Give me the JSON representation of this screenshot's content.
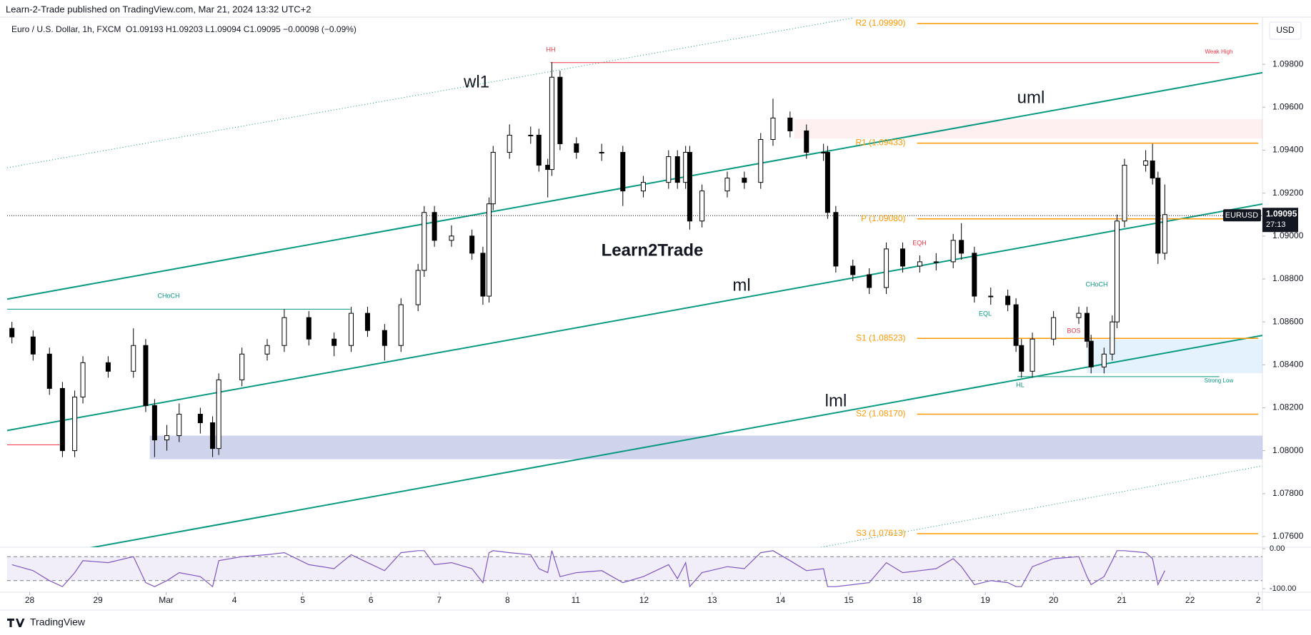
{
  "header": {
    "publisher": "Learn-2-Trade published on TradingView.com, Mar 21, 2024 13:32 UTC+2",
    "footer": "TradingView",
    "watermark": "Learn2Trade"
  },
  "chart_data": {
    "type": "candlestick",
    "symbol_line": "Euro / U.S. Dollar, 1h, FXCM",
    "ohlc_line": "O1.09193 H1.09203 L1.09094 C1.09095 −0.00098 (−0.09%)",
    "currency": "USD",
    "xlim": [
      -0.33,
      18.06
    ],
    "xticks": [
      {
        "value": 0,
        "label": "28"
      },
      {
        "value": 1,
        "label": "29"
      },
      {
        "value": 2,
        "label": "Mar"
      },
      {
        "value": 3,
        "label": "4"
      },
      {
        "value": 4,
        "label": "5"
      },
      {
        "value": 5,
        "label": "6"
      },
      {
        "value": 6,
        "label": "7"
      },
      {
        "value": 7,
        "label": "8"
      },
      {
        "value": 8,
        "label": "11"
      },
      {
        "value": 9,
        "label": "12"
      },
      {
        "value": 10,
        "label": "13"
      },
      {
        "value": 11,
        "label": "14"
      },
      {
        "value": 12,
        "label": "15"
      },
      {
        "value": 13,
        "label": "18"
      },
      {
        "value": 14,
        "label": "19"
      },
      {
        "value": 15,
        "label": "20"
      },
      {
        "value": 16,
        "label": "21"
      },
      {
        "value": 17,
        "label": "22"
      },
      {
        "value": 18,
        "label": "2"
      }
    ],
    "ylim": [
      1.0755,
      1.1002
    ],
    "yticks": [
      {
        "value": 1.098,
        "label": "1.09800"
      },
      {
        "value": 1.096,
        "label": "1.09600"
      },
      {
        "value": 1.094,
        "label": "1.09400"
      },
      {
        "value": 1.092,
        "label": "1.09200"
      },
      {
        "value": 1.09,
        "label": "1.09000"
      },
      {
        "value": 1.088,
        "label": "1.08800"
      },
      {
        "value": 1.086,
        "label": "1.08600"
      },
      {
        "value": 1.084,
        "label": "1.08400"
      },
      {
        "value": 1.082,
        "label": "1.08200"
      },
      {
        "value": 1.08,
        "label": "1.08000"
      },
      {
        "value": 1.078,
        "label": "1.07800"
      },
      {
        "value": 1.076,
        "label": "1.07600"
      }
    ],
    "candles": {
      "up_color": "#ffffff",
      "down_color": "#000000",
      "x": [
        -0.26,
        0.05,
        0.29,
        0.48,
        0.66,
        0.78,
        1.15,
        1.52,
        1.7,
        1.83,
        2.01,
        2.19,
        2.5,
        2.68,
        2.77,
        3.11,
        3.48,
        3.73,
        4.09,
        4.46,
        4.71,
        4.95,
        5.2,
        5.44,
        5.69,
        5.78,
        5.93,
        6.18,
        6.48,
        6.64,
        6.73,
        6.79,
        7.03,
        7.34,
        7.46,
        7.59,
        7.65,
        7.77,
        8.01,
        8.38,
        8.69,
        8.99,
        9.36,
        9.49,
        9.61,
        9.67,
        9.85,
        10.22,
        10.47,
        10.71,
        10.89,
        11.14,
        11.38,
        11.63,
        11.69,
        11.81,
        12.06,
        12.3,
        12.55,
        12.79,
        13.04,
        13.28,
        13.53,
        13.65,
        13.84,
        14.08,
        14.33,
        14.45,
        14.53,
        14.69,
        15.0,
        15.37,
        15.49,
        15.55,
        15.74,
        15.86,
        15.93,
        16.04,
        16.35,
        16.45,
        16.53,
        16.63
      ],
      "open": [
        1.0857,
        1.0853,
        1.0845,
        1.0829,
        1.08,
        1.0825,
        1.0841,
        1.0837,
        1.0849,
        1.0821,
        1.0805,
        1.0807,
        1.0817,
        1.0813,
        1.0801,
        1.0833,
        1.0845,
        1.0849,
        1.0862,
        1.0852,
        1.0849,
        1.0864,
        1.0856,
        1.0849,
        1.0868,
        1.0884,
        1.0911,
        1.0898,
        1.09,
        1.0892,
        1.0872,
        1.0915,
        1.0939,
        1.0947,
        1.0947,
        1.0933,
        1.0931,
        1.0974,
        1.0943,
        1.0939,
        1.0939,
        1.0921,
        1.0925,
        1.0937,
        1.0925,
        1.0939,
        1.0907,
        1.0921,
        1.0927,
        1.0925,
        1.0945,
        1.0955,
        1.0949,
        1.0939,
        1.0939,
        1.0911,
        1.0886,
        1.0882,
        1.0876,
        1.0894,
        1.0886,
        1.0888,
        1.0888,
        1.0898,
        1.0892,
        1.0872,
        1.0872,
        1.0868,
        1.0849,
        1.0837,
        1.0852,
        1.0862,
        1.0864,
        1.0851,
        1.0839,
        1.0845,
        1.086,
        1.0907,
        1.0933,
        1.0935,
        1.0927,
        1.0892
      ],
      "high": [
        1.086,
        1.0856,
        1.0848,
        1.0832,
        1.0828,
        1.0844,
        1.0844,
        1.0857,
        1.0852,
        1.0824,
        1.0812,
        1.0822,
        1.082,
        1.0816,
        1.0836,
        1.0848,
        1.0852,
        1.0866,
        1.0865,
        1.0855,
        1.0867,
        1.0867,
        1.0859,
        1.0871,
        1.0887,
        1.0914,
        1.0914,
        1.0905,
        1.0903,
        1.0895,
        1.0918,
        1.0942,
        1.0952,
        1.0951,
        1.095,
        1.0936,
        1.0981,
        1.0977,
        1.0946,
        1.0943,
        1.0942,
        1.0928,
        1.094,
        1.094,
        1.0942,
        1.0942,
        1.0924,
        1.093,
        1.093,
        1.0948,
        1.0964,
        1.0958,
        1.0952,
        1.0943,
        1.0942,
        1.0914,
        1.0889,
        1.0885,
        1.0897,
        1.0897,
        1.0891,
        1.0892,
        1.0901,
        1.0906,
        1.0895,
        1.0876,
        1.0875,
        1.0871,
        1.0852,
        1.0855,
        1.0865,
        1.0867,
        1.0867,
        1.0854,
        1.0848,
        1.0863,
        1.091,
        1.0936,
        1.094,
        1.0943,
        1.093,
        1.0924
      ],
      "low": [
        1.085,
        1.0842,
        1.0826,
        1.0797,
        1.0797,
        1.0822,
        1.0834,
        1.0834,
        1.0818,
        1.0797,
        1.08,
        1.0804,
        1.0808,
        1.0797,
        1.0798,
        1.083,
        1.0842,
        1.0846,
        1.0849,
        1.0844,
        1.0846,
        1.0853,
        1.0842,
        1.0846,
        1.0865,
        1.0881,
        1.0895,
        1.0895,
        1.0889,
        1.0868,
        1.0869,
        1.0912,
        1.0936,
        1.0943,
        1.093,
        1.0918,
        1.0928,
        1.094,
        1.0936,
        1.0935,
        1.0914,
        1.0918,
        1.0922,
        1.0922,
        1.0922,
        1.0903,
        1.0904,
        1.0918,
        1.0922,
        1.0922,
        1.0942,
        1.0946,
        1.0936,
        1.0935,
        1.0908,
        1.0883,
        1.0879,
        1.0873,
        1.0873,
        1.0883,
        1.0883,
        1.0884,
        1.0885,
        1.0889,
        1.0869,
        1.0868,
        1.0865,
        1.0846,
        1.0834,
        1.0834,
        1.0849,
        1.0859,
        1.0848,
        1.0836,
        1.0836,
        1.0842,
        1.0857,
        1.0904,
        1.093,
        1.0924,
        1.0887,
        1.0889
      ],
      "close": [
        1.0853,
        1.0845,
        1.0829,
        1.08,
        1.0825,
        1.0841,
        1.0837,
        1.0849,
        1.0821,
        1.0805,
        1.0807,
        1.0817,
        1.0813,
        1.0801,
        1.0833,
        1.0845,
        1.0849,
        1.0862,
        1.0852,
        1.0849,
        1.0864,
        1.0856,
        1.0849,
        1.0868,
        1.0884,
        1.0911,
        1.0898,
        1.09,
        1.0892,
        1.0872,
        1.0915,
        1.0939,
        1.0947,
        1.0947,
        1.0933,
        1.0931,
        1.0974,
        1.0943,
        1.0939,
        1.0939,
        1.0921,
        1.0925,
        1.0937,
        1.0925,
        1.0939,
        1.0907,
        1.0921,
        1.0927,
        1.0925,
        1.0945,
        1.0955,
        1.0949,
        1.0939,
        1.0939,
        1.0911,
        1.0886,
        1.0882,
        1.0876,
        1.0894,
        1.0886,
        1.0888,
        1.0888,
        1.0898,
        1.0892,
        1.0872,
        1.0872,
        1.0868,
        1.0849,
        1.0837,
        1.0852,
        1.0862,
        1.0864,
        1.0851,
        1.0839,
        1.0845,
        1.086,
        1.0907,
        1.0933,
        1.0935,
        1.0927,
        1.0892,
        1.091
      ]
    },
    "last_price": {
      "symbol": "EURUSD",
      "value": 1.09095,
      "countdown": "27:13"
    },
    "levels_x": [
      13.0,
      18.0
    ],
    "level_color": "#ff9800",
    "levels": [
      {
        "label": "R2 (1.09990)",
        "value": 1.0999
      },
      {
        "label": "R1 (1.09433)",
        "value": 1.09433
      },
      {
        "label": "P (1.09080)",
        "value": 1.0908
      },
      {
        "label": "S1 (1.08523)",
        "value": 1.08523
      },
      {
        "label": "S2 (1.08170)",
        "value": 1.0817
      },
      {
        "label": "S3 (1.07613)",
        "value": 1.07613
      }
    ],
    "trendlines": [
      {
        "name": "wl1",
        "style": "dotted",
        "points": [
          [
            -0.33,
            1.09318
          ],
          [
            12.06,
            1.10016
          ]
        ]
      },
      {
        "name": "uml",
        "style": "solid",
        "points": [
          [
            -0.33,
            1.08706
          ],
          [
            18.06,
            1.09761
          ]
        ]
      },
      {
        "name": "ml",
        "style": "solid",
        "points": [
          [
            -0.33,
            1.08094
          ],
          [
            18.06,
            1.09149
          ]
        ]
      },
      {
        "name": "lml",
        "style": "solid",
        "points": [
          [
            0.85,
            1.07545
          ],
          [
            18.06,
            1.08537
          ]
        ]
      }
    ],
    "outer_line": {
      "style": "dotted",
      "points": [
        [
          11.51,
          1.07545
        ],
        [
          18.06,
          1.07929
        ]
      ]
    },
    "trend_color": "#089981",
    "zones": [
      {
        "x": [
          1.76,
          18.06
        ],
        "y": [
          1.0796,
          1.0807
        ],
        "color": "rgba(63,81,181,0.25)"
      },
      {
        "x": [
          15.49,
          18.06
        ],
        "y": [
          1.08361,
          1.08518
        ],
        "color": "rgba(33,150,243,0.12)"
      },
      {
        "x": [
          11.2,
          18.06
        ],
        "y": [
          1.09455,
          1.09545
        ],
        "color": "rgba(242,54,69,0.08)"
      }
    ],
    "structure_lines": [
      {
        "from": 7.63,
        "to": 17.43,
        "value": 1.09808,
        "color": "#f23645"
      },
      {
        "from": 14.47,
        "to": 17.43,
        "value": 1.08345,
        "color": "#089981"
      },
      {
        "from": -0.33,
        "to": 4.7,
        "value": 1.08659,
        "color": "#089981"
      },
      {
        "from": -0.33,
        "to": 0.44,
        "value": 1.08027,
        "color": "#f23645"
      }
    ],
    "annotations": [
      {
        "text": "HH",
        "color": "#f23645"
      },
      {
        "text": "Weak High",
        "color": "#f23645"
      },
      {
        "text": "CHoCH",
        "color": "#089981"
      },
      {
        "text": "EQH",
        "color": "#f23645"
      },
      {
        "text": "EQL",
        "color": "#089981"
      },
      {
        "text": "CHoCH",
        "color": "#089981"
      },
      {
        "text": "BOS",
        "color": "#f23645"
      },
      {
        "text": "HL",
        "color": "#089981"
      },
      {
        "text": "Strong Low",
        "color": "#089981"
      }
    ],
    "oscillator": {
      "color": "#7e57c2",
      "ylim": [
        -100,
        0
      ],
      "yticks": [
        {
          "value": 0,
          "label": "0.00"
        },
        {
          "value": -100,
          "label": "-100.00"
        }
      ],
      "bands": [
        -20,
        -80
      ],
      "values": [
        -40,
        -55,
        -80,
        -95,
        -60,
        -30,
        -35,
        -20,
        -85,
        -95,
        -80,
        -60,
        -70,
        -95,
        -30,
        -20,
        -15,
        -10,
        -40,
        -50,
        -15,
        -35,
        -55,
        -10,
        -5,
        -5,
        -40,
        -35,
        -50,
        -85,
        -10,
        -5,
        -10,
        -15,
        -50,
        -60,
        -5,
        -70,
        -60,
        -55,
        -85,
        -70,
        -40,
        -75,
        -35,
        -95,
        -60,
        -45,
        -50,
        -10,
        -5,
        -30,
        -55,
        -50,
        -95,
        -95,
        -90,
        -85,
        -35,
        -60,
        -55,
        -50,
        -25,
        -45,
        -90,
        -80,
        -85,
        -95,
        -95,
        -45,
        -25,
        -20,
        -70,
        -90,
        -70,
        -30,
        -5,
        -5,
        -10,
        -25,
        -90,
        -55
      ]
    }
  }
}
